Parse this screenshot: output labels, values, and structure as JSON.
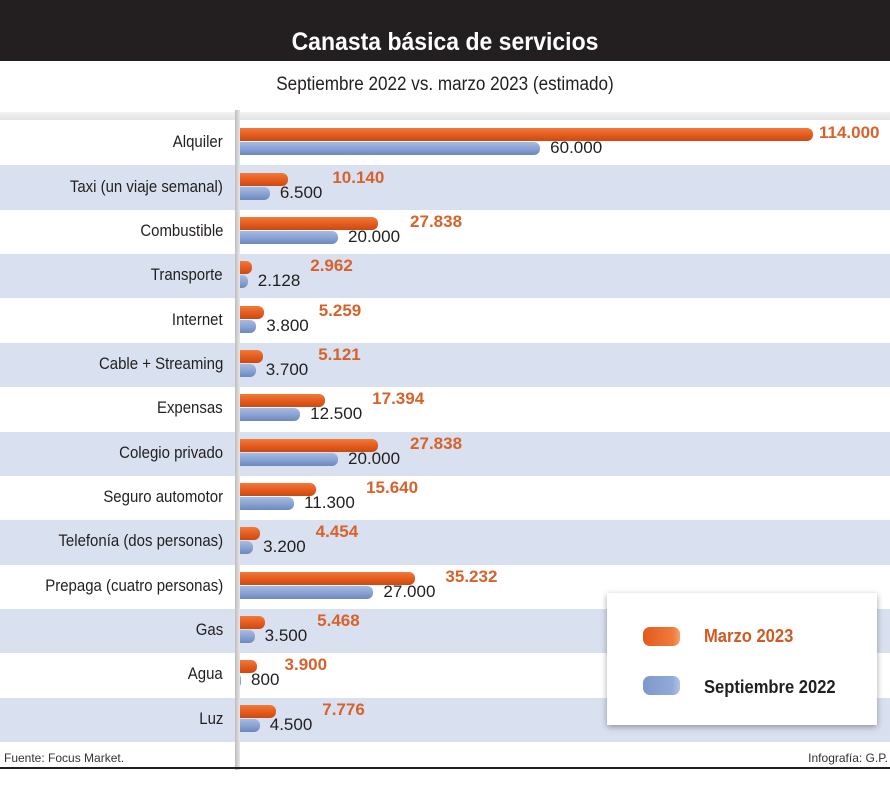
{
  "header": {
    "title": "Canasta básica de servicios",
    "subtitle": "Septiembre 2022 vs. marzo 2023 (estimado)"
  },
  "legend": {
    "items": [
      {
        "name": "Marzo 2023",
        "color": "#e45a1c"
      },
      {
        "name": "Septiembre 2022",
        "color": "#88a1d2"
      }
    ]
  },
  "footer": {
    "source": "Fuente: Focus Market.",
    "credit": "Infografía: G.P."
  },
  "chart_data": {
    "type": "bar",
    "orientation": "horizontal",
    "title": "Canasta básica de servicios",
    "subtitle": "Septiembre 2022 vs. marzo 2023 (estimado)",
    "xlabel": "",
    "ylabel": "",
    "xlim": [
      0,
      114000
    ],
    "grid": false,
    "legend_position": "bottom-right",
    "categories": [
      "Alquiler",
      "Taxi (un viaje semanal)",
      "Combustible",
      "Transporte",
      "Internet",
      "Cable + Streaming",
      "Expensas",
      "Colegio privado",
      "Seguro automotor",
      "Telefonía (dos personas)",
      "Prepaga (cuatro personas)",
      "Gas",
      "Agua",
      "Luz"
    ],
    "series": [
      {
        "name": "Marzo 2023",
        "values": [
          114000,
          10140,
          27838,
          2962,
          5259,
          5121,
          17394,
          27838,
          15640,
          4454,
          35232,
          5468,
          3900,
          7776
        ],
        "labels": [
          "114.000",
          "10.140",
          "27.838",
          "2.962",
          "5.259",
          "5.121",
          "17.394",
          "27.838",
          "15.640",
          "4.454",
          "35.232",
          "5.468",
          "3.900",
          "7.776"
        ]
      },
      {
        "name": "Septiembre 2022",
        "values": [
          60000,
          6500,
          20000,
          2128,
          3800,
          3700,
          12500,
          20000,
          11300,
          3200,
          27000,
          3500,
          800,
          4500
        ],
        "labels": [
          "60.000",
          "6.500",
          "20.000",
          "2.128",
          "3.800",
          "3.700",
          "12.500",
          "20.000",
          "11.300",
          "3.200",
          "27.000",
          "3.500",
          "800",
          "4.500"
        ]
      }
    ]
  }
}
